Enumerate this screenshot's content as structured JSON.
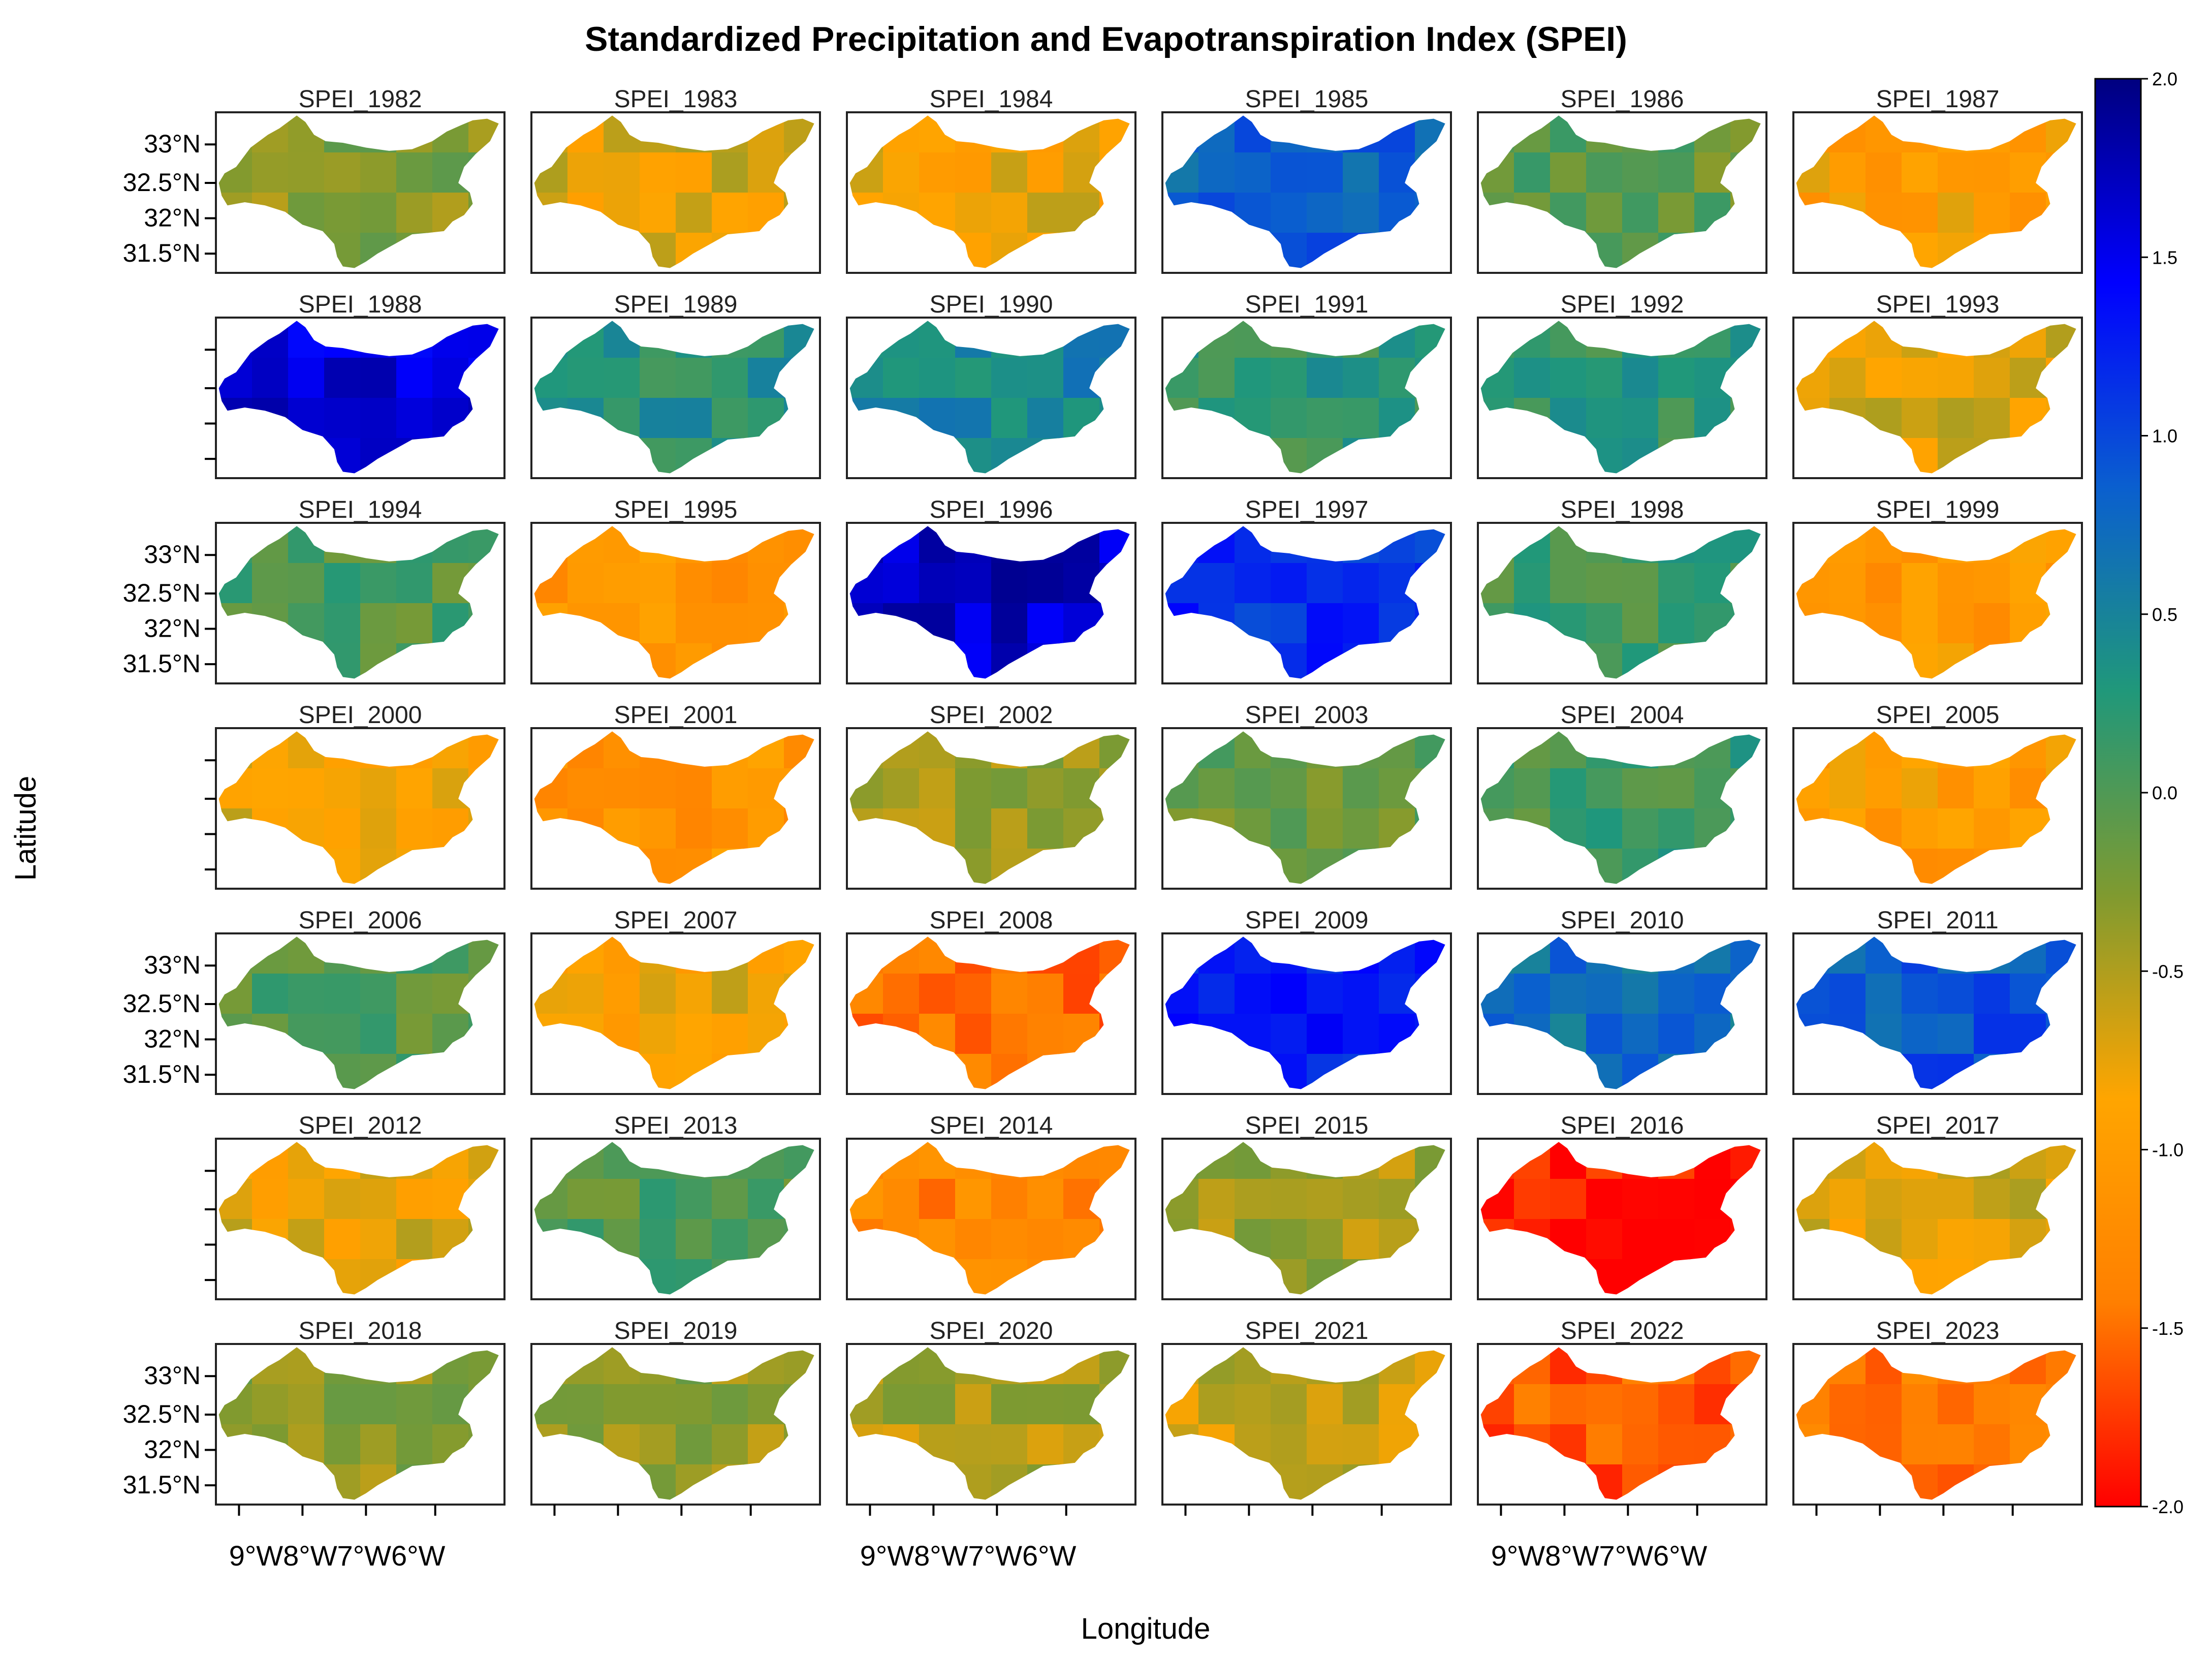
{
  "chart_data": {
    "type": "heatmap",
    "title": "Standardized Precipitation and Evapotranspiration Index (SPEI)",
    "xlabel": "Longitude",
    "ylabel": "Latitude",
    "panel_prefix": "SPEI_",
    "years": [
      1982,
      1983,
      1984,
      1985,
      1986,
      1987,
      1988,
      1989,
      1990,
      1991,
      1992,
      1993,
      1994,
      1995,
      1996,
      1997,
      1998,
      1999,
      2000,
      2001,
      2002,
      2003,
      2004,
      2005,
      2006,
      2007,
      2008,
      2009,
      2010,
      2011,
      2012,
      2013,
      2014,
      2015,
      2016,
      2017,
      2018,
      2019,
      2020,
      2021,
      2022,
      2023
    ],
    "mean_spei": [
      -0.3,
      -0.7,
      -0.8,
      0.8,
      -0.1,
      -0.95,
      1.6,
      0.3,
      0.5,
      0.2,
      0.2,
      -0.7,
      0.0,
      -1.1,
      1.7,
      1.2,
      0.1,
      -1.05,
      -0.8,
      -1.1,
      -0.4,
      -0.1,
      0.1,
      -1.0,
      -0.05,
      -0.8,
      -1.5,
      1.3,
      0.7,
      0.9,
      -0.75,
      0.0,
      -1.3,
      -0.45,
      -1.9,
      -0.65,
      -0.35,
      -0.35,
      -0.5,
      -0.6,
      -1.6,
      -1.45
    ],
    "x_ticks": [
      "9°W",
      "8°W",
      "7°W",
      "6°W"
    ],
    "y_ticks": [
      "33°N",
      "32.5°N",
      "32°N",
      "31.5°N"
    ],
    "colorbar": {
      "range": [
        -2.0,
        2.0
      ],
      "tick_labels": [
        "2.0",
        "1.5",
        "1.0",
        "0.5",
        "0.0",
        "-0.5",
        "-1.0",
        "-1.5",
        "-2.0"
      ],
      "tick_values": [
        2.0,
        1.5,
        1.0,
        0.5,
        0.0,
        -0.5,
        -1.0,
        -1.5,
        -2.0
      ]
    }
  },
  "palette": {
    "stops": [
      "#ff0000",
      "#ff7f00",
      "#ffa500",
      "#7f9a30",
      "#20987a",
      "#0a5fcf",
      "#0000ff",
      "#00007f"
    ],
    "background": "#ffffff",
    "frame": "#222222"
  }
}
